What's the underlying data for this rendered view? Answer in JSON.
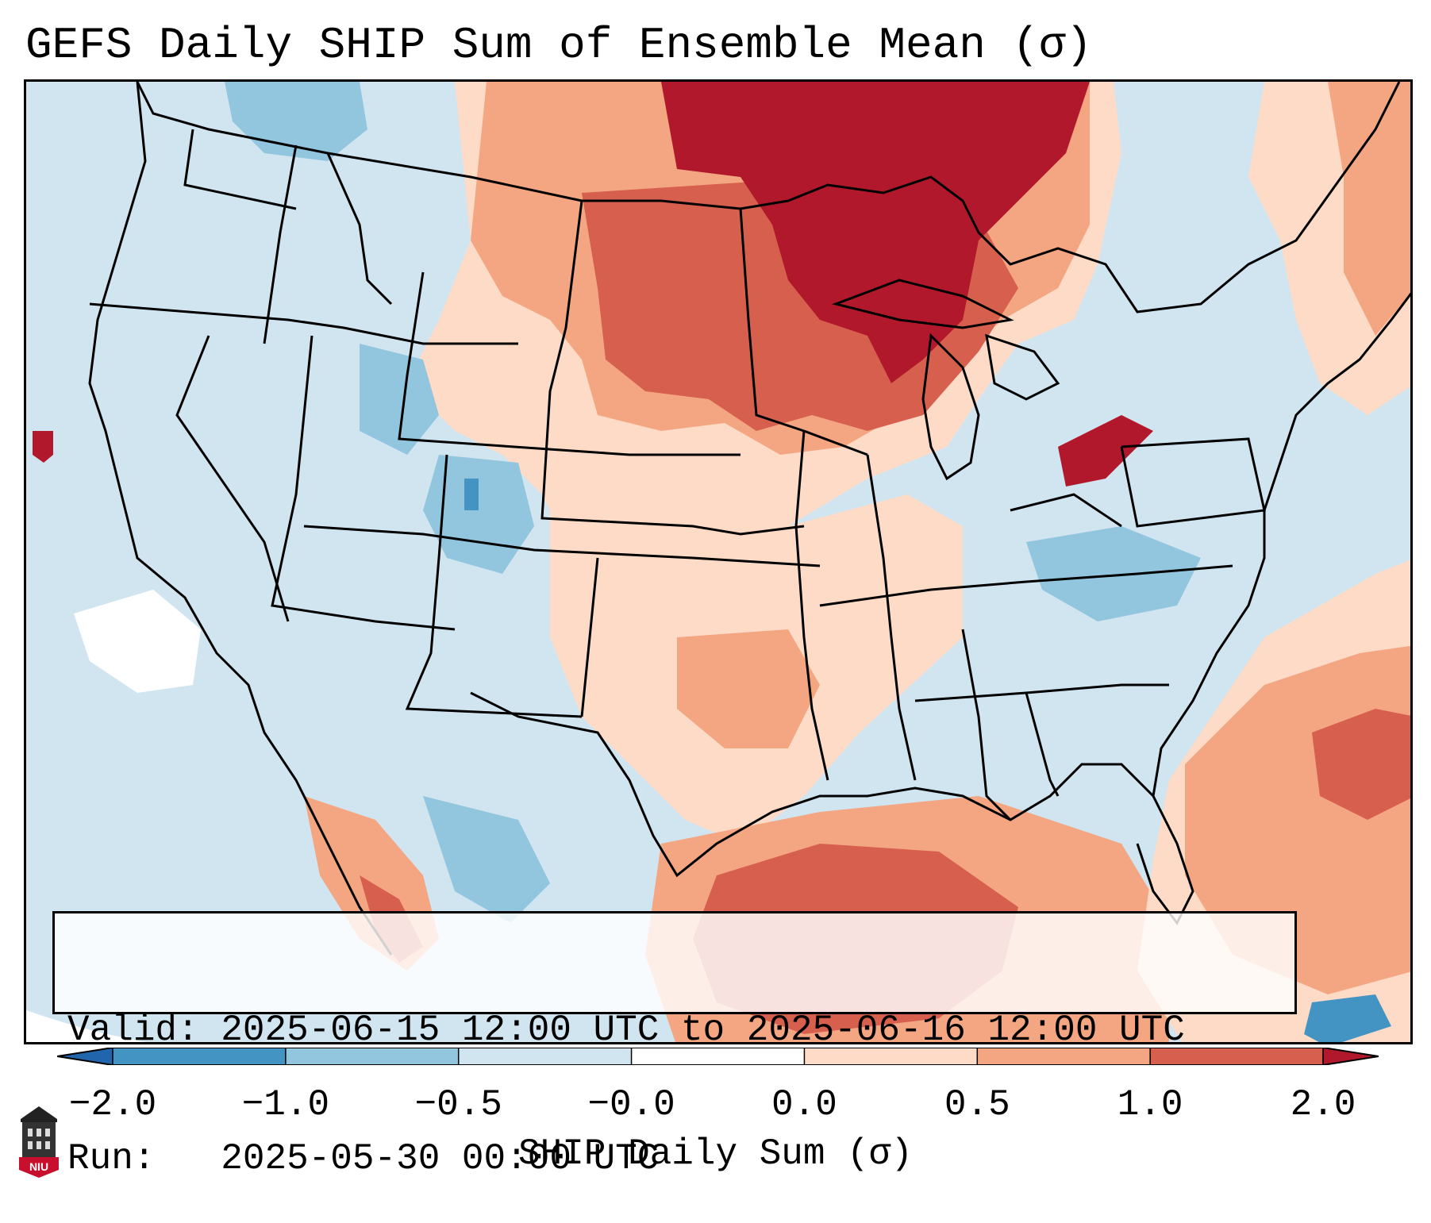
{
  "title": "GEFS Daily SHIP Sum of Ensemble Mean (σ)",
  "info": {
    "valid_label": "Valid:",
    "valid_value": "2025-06-15 12:00 UTC to 2025-06-16 12:00 UTC",
    "run_label": "Run:",
    "run_value": "2025-05-30 00:00 UTC"
  },
  "colorbar": {
    "label": "SHIP Daily Sum (σ)",
    "ticks": [
      "−2.0",
      "−1.0",
      "−0.5",
      "−0.0",
      "0.0",
      "0.5",
      "1.0",
      "2.0"
    ],
    "bin_colors": [
      "#4393c3",
      "#92c5de",
      "#d1e5f0",
      "#ffffff",
      "#fddbc7",
      "#f4a582",
      "#d6604d"
    ],
    "extend_low_color": "#2166ac",
    "extend_high_color": "#b2182b"
  },
  "map": {
    "ocean_color": "#d1e5f0",
    "border_color": "#000000"
  },
  "logo": {
    "text": "NIU",
    "color": "#c8102e"
  }
}
